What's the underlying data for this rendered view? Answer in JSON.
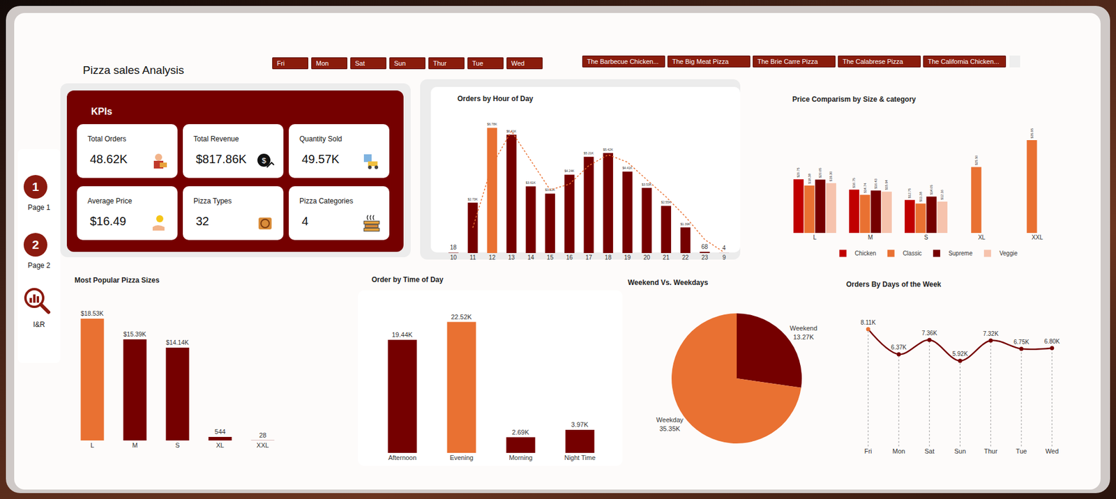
{
  "header": {
    "title": "Pizza sales Analysis"
  },
  "nav": [
    {
      "badge": "1",
      "label": "Page 1"
    },
    {
      "badge": "2",
      "label": "Page 2"
    },
    {
      "label": "I&R"
    }
  ],
  "slicers": {
    "days": [
      "Fri",
      "Mon",
      "Sat",
      "Sun",
      "Thur",
      "Tue",
      "Wed"
    ],
    "pizzas": [
      "The Barbecue Chicken...",
      "The Big Meat Pizza",
      "The Brie Carre Pizza",
      "The Calabrese Pizza",
      "The California Chicken..."
    ]
  },
  "kpis": {
    "title": "KPIs",
    "cards": [
      {
        "label": "Total Orders",
        "value": "48.62K"
      },
      {
        "label": "Total Revenue",
        "value": "$817.86K"
      },
      {
        "label": "Quantity Sold",
        "value": "49.57K"
      },
      {
        "label": "Average Price",
        "value": "$16.49"
      },
      {
        "label": "Pizza Types",
        "value": "32"
      },
      {
        "label": "Pizza Categories",
        "value": "4"
      }
    ]
  },
  "chart_data": [
    {
      "type": "bar",
      "title": "Orders by Hour of Day",
      "categories": [
        "10",
        "11",
        "12",
        "13",
        "14",
        "15",
        "16",
        "17",
        "18",
        "19",
        "20",
        "21",
        "22",
        "23",
        "9"
      ],
      "series": [
        {
          "type": "bar",
          "values": [
            18,
            2730,
            6780,
            6410,
            3610,
            3220,
            4240,
            5210,
            5420,
            4410,
            3530,
            2550,
            1390,
            68,
            4
          ],
          "value_labels": [
            "18",
            "$2.73K",
            "$6.78K",
            "$6.41K",
            "$3.61K",
            "$3.22K",
            "$4.24K",
            "$5.21K",
            "$5.42K",
            "$4.41K",
            "$3.53K",
            "$2.55K",
            "$1.39K",
            "68",
            "4"
          ],
          "colors": [
            "#750000",
            "#750000",
            "#e97132",
            "#750000",
            "#750000",
            "#750000",
            "#750000",
            "#750000",
            "#750000",
            "#750000",
            "#750000",
            "#750000",
            "#750000",
            "#750000",
            "#750000"
          ]
        },
        {
          "type": "line",
          "line_style": "dotted",
          "color": "#e97132",
          "values": [
            null,
            1370,
            4760,
            6600,
            5010,
            3420,
            3730,
            4730,
            5320,
            4920,
            3970,
            3040,
            1970,
            730,
            40
          ]
        }
      ],
      "ylim": [
        0,
        7200
      ],
      "tick_labels": "x",
      "data_labels": true,
      "grid": false
    },
    {
      "type": "bar",
      "title": "Price Comparism by Size & category",
      "categories": [
        "L",
        "M",
        "S",
        "XL",
        "XXL"
      ],
      "series": [
        {
          "name": "Chicken",
          "color": "#c00000",
          "values": [
            20.75,
            16.75,
            12.75,
            null,
            null
          ],
          "value_labels": [
            "$20.75",
            "$16.75",
            "$12.75",
            null,
            null
          ]
        },
        {
          "name": "Classic",
          "color": "#e97132",
          "values": [
            18.38,
            14.74,
            11.38,
            25.5,
            35.95
          ],
          "value_labels": [
            "$18.38",
            "$14.74",
            "$11.38",
            "$25.50",
            "$35.95"
          ]
        },
        {
          "name": "Supreme",
          "color": "#750000",
          "values": [
            20.65,
            16.43,
            14.05,
            null,
            null
          ],
          "value_labels": [
            "$20.65",
            "$16.43",
            "$14.05",
            null,
            null
          ]
        },
        {
          "name": "Veggie",
          "color": "#f6c3ad",
          "values": [
            19.3,
            15.94,
            12.16,
            null,
            null
          ],
          "value_labels": [
            "$19.30",
            "$15.94",
            "$12.16",
            null,
            null
          ]
        }
      ],
      "ylim": [
        0,
        38
      ],
      "tick_labels": "x",
      "data_labels": true,
      "legend": "bottom",
      "grid": false
    },
    {
      "type": "bar",
      "title": "Most Popular Pizza Sizes",
      "categories": [
        "L",
        "M",
        "S",
        "XL",
        "XXL"
      ],
      "values": [
        18530,
        15390,
        14140,
        544,
        28
      ],
      "value_labels": [
        "$18.53K",
        "$15.39K",
        "$14.14K",
        "544",
        "28"
      ],
      "colors": [
        "#e97132",
        "#750000",
        "#750000",
        "#750000",
        "#750000"
      ],
      "ylim": [
        0,
        19800
      ],
      "tick_labels": "x",
      "data_labels": true,
      "grid": false
    },
    {
      "type": "bar",
      "title": "Order by Time of Day",
      "categories": [
        "Afternoon",
        "Evening",
        "Morning",
        "Night Time"
      ],
      "values": [
        19440,
        22520,
        2690,
        3970
      ],
      "value_labels": [
        "19.44K",
        "22.52K",
        "2.69K",
        "3.97K"
      ],
      "colors": [
        "#750000",
        "#e97132",
        "#750000",
        "#750000"
      ],
      "ylim": [
        0,
        24000
      ],
      "tick_labels": "x",
      "data_labels": true,
      "grid": false
    },
    {
      "type": "pie",
      "title": "Weekend Vs. Weekdays",
      "categories": [
        "Weekend",
        "Weekday"
      ],
      "values": [
        13270,
        35350
      ],
      "value_labels": [
        "13.27K",
        "35.35K"
      ],
      "colors": [
        "#750000",
        "#e97132"
      ],
      "data_labels": true
    },
    {
      "type": "line",
      "title": "Orders By Days of the Week",
      "categories": [
        "Fri",
        "Mon",
        "Sat",
        "Sun",
        "Thur",
        "Tue",
        "Wed"
      ],
      "values": [
        8110,
        6370,
        7360,
        5920,
        7320,
        6750,
        6800
      ],
      "value_labels": [
        "8.11K",
        "6.37K",
        "7.36K",
        "5.92K",
        "7.32K",
        "6.75K",
        "6.80K"
      ],
      "color": "#750000",
      "colors": [
        "#e97132",
        "#750000",
        "#750000",
        "#750000",
        "#750000",
        "#750000",
        "#750000"
      ],
      "marker": "circle",
      "line_style": "solid",
      "ylim": [
        0,
        9000
      ],
      "tick_labels": "x",
      "data_labels": true,
      "grid": false
    }
  ]
}
